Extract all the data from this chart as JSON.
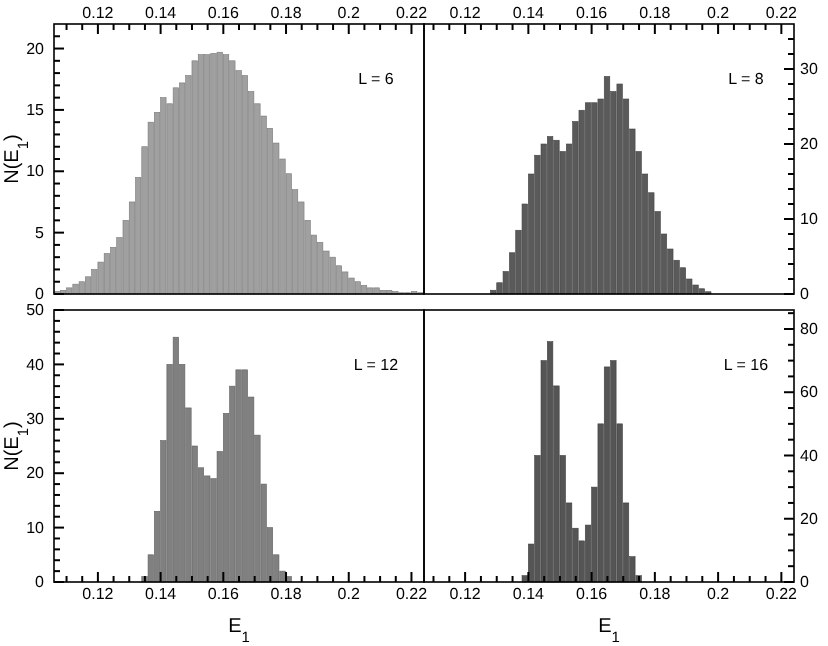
{
  "chart_data": [
    {
      "type": "histogram",
      "ylabel": "N(E$_{1}$)",
      "annotations": [
        "L = 6"
      ],
      "xlim": [
        0.106,
        0.224
      ],
      "xticks": [
        {
          "value": 0.11,
          "label": null
        },
        {
          "value": 0.115,
          "label": null
        },
        0.12,
        {
          "value": 0.125,
          "label": null
        },
        {
          "value": 0.13,
          "label": null
        },
        {
          "value": 0.135,
          "label": null
        },
        0.14,
        {
          "value": 0.145,
          "label": null
        },
        {
          "value": 0.15,
          "label": null
        },
        {
          "value": 0.155,
          "label": null
        },
        0.16,
        {
          "value": 0.165,
          "label": null
        },
        {
          "value": 0.17,
          "label": null
        },
        {
          "value": 0.175,
          "label": null
        },
        0.18,
        {
          "value": 0.185,
          "label": null
        },
        {
          "value": 0.19,
          "label": null
        },
        {
          "value": 0.195,
          "label": null
        },
        0.2,
        {
          "value": 0.205,
          "label": null
        },
        {
          "value": 0.21,
          "label": null
        },
        {
          "value": 0.215,
          "label": null
        },
        0.22
      ],
      "ylim": [
        0,
        22
      ],
      "yticks": [
        0,
        {
          "value": 1,
          "label": null
        },
        {
          "value": 2,
          "label": null
        },
        {
          "value": 3,
          "label": null
        },
        {
          "value": 4,
          "label": null
        },
        5,
        {
          "value": 6,
          "label": null
        },
        {
          "value": 7,
          "label": null
        },
        {
          "value": 8,
          "label": null
        },
        {
          "value": 9,
          "label": null
        },
        10,
        {
          "value": 11,
          "label": null
        },
        {
          "value": 12,
          "label": null
        },
        {
          "value": 13,
          "label": null
        },
        {
          "value": 14,
          "label": null
        },
        15,
        {
          "value": 16,
          "label": null
        },
        {
          "value": 17,
          "label": null
        },
        {
          "value": 18,
          "label": null
        },
        {
          "value": 19,
          "label": null
        },
        20,
        {
          "value": 21,
          "label": null
        }
      ],
      "bins": [
        0.106,
        0.108,
        0.11,
        0.112,
        0.114,
        0.116,
        0.118,
        0.12,
        0.122,
        0.124,
        0.126,
        0.128,
        0.13,
        0.132,
        0.134,
        0.136,
        0.138,
        0.14,
        0.142,
        0.144,
        0.146,
        0.148,
        0.15,
        0.152,
        0.154,
        0.156,
        0.158,
        0.16,
        0.162,
        0.164,
        0.166,
        0.168,
        0.17,
        0.172,
        0.174,
        0.176,
        0.178,
        0.18,
        0.182,
        0.184,
        0.186,
        0.188,
        0.19,
        0.192,
        0.194,
        0.196,
        0.198,
        0.2,
        0.202,
        0.204,
        0.206,
        0.208,
        0.21,
        0.212,
        0.214,
        0.216,
        0.218,
        0.22,
        0.222,
        0.224
      ],
      "series": [
        {
          "color": "#a0a0a0",
          "values": [
            0.2,
            0.3,
            0.5,
            0.8,
            1.0,
            1.4,
            2.0,
            2.6,
            3.3,
            3.8,
            4.6,
            6.0,
            7.5,
            9.5,
            12.0,
            14.0,
            14.8,
            16.0,
            15.5,
            16.8,
            17.2,
            17.8,
            19.0,
            19.5,
            19.5,
            19.6,
            19.7,
            19.5,
            19.0,
            18.2,
            17.8,
            16.5,
            15.5,
            14.5,
            13.5,
            12.3,
            11.0,
            9.8,
            8.5,
            7.5,
            6.0,
            4.8,
            4.2,
            3.5,
            3.0,
            2.3,
            1.8,
            1.3,
            1.0,
            0.7,
            0.5,
            0.5,
            0.3,
            0.3,
            0.2,
            0.1,
            0.1,
            0.2,
            0.1
          ]
        }
      ]
    },
    {
      "type": "histogram",
      "annotations": [
        "L = 8"
      ],
      "xlim": [
        0.107,
        0.224
      ],
      "xticks": [
        {
          "value": 0.11,
          "label": null
        },
        {
          "value": 0.115,
          "label": null
        },
        0.12,
        {
          "value": 0.125,
          "label": null
        },
        {
          "value": 0.13,
          "label": null
        },
        {
          "value": 0.135,
          "label": null
        },
        0.14,
        {
          "value": 0.145,
          "label": null
        },
        {
          "value": 0.15,
          "label": null
        },
        {
          "value": 0.155,
          "label": null
        },
        0.16,
        {
          "value": 0.165,
          "label": null
        },
        {
          "value": 0.17,
          "label": null
        },
        {
          "value": 0.175,
          "label": null
        },
        0.18,
        {
          "value": 0.185,
          "label": null
        },
        {
          "value": 0.19,
          "label": null
        },
        {
          "value": 0.195,
          "label": null
        },
        0.2,
        {
          "value": 0.205,
          "label": null
        },
        {
          "value": 0.21,
          "label": null
        },
        {
          "value": 0.215,
          "label": null
        },
        0.22
      ],
      "y2lim": [
        0,
        36
      ],
      "y2ticks": [
        0,
        {
          "value": 2,
          "label": null
        },
        {
          "value": 4,
          "label": null
        },
        {
          "value": 6,
          "label": null
        },
        {
          "value": 8,
          "label": null
        },
        10,
        {
          "value": 12,
          "label": null
        },
        {
          "value": 14,
          "label": null
        },
        {
          "value": 16,
          "label": null
        },
        {
          "value": 18,
          "label": null
        },
        20,
        {
          "value": 22,
          "label": null
        },
        {
          "value": 24,
          "label": null
        },
        {
          "value": 26,
          "label": null
        },
        {
          "value": 28,
          "label": null
        },
        30,
        {
          "value": 32,
          "label": null
        },
        {
          "value": 34,
          "label": null
        }
      ],
      "bins": [
        0.128,
        0.13,
        0.132,
        0.134,
        0.136,
        0.138,
        0.14,
        0.142,
        0.144,
        0.146,
        0.148,
        0.15,
        0.152,
        0.154,
        0.156,
        0.158,
        0.16,
        0.162,
        0.164,
        0.166,
        0.168,
        0.17,
        0.172,
        0.174,
        0.176,
        0.178,
        0.18,
        0.182,
        0.184,
        0.186,
        0.188,
        0.19,
        0.192,
        0.194,
        0.196,
        0.198
      ],
      "series": [
        {
          "color": "#5a5a5a",
          "axis": "y2",
          "values": [
            0.5,
            1.5,
            3,
            5.5,
            8.5,
            12,
            16,
            18.5,
            20,
            21,
            20.5,
            19,
            20,
            23,
            24.5,
            25.5,
            25.5,
            26,
            29,
            27,
            28,
            26,
            22,
            19,
            16,
            13.5,
            11,
            8,
            6,
            4.5,
            3.5,
            2,
            1.2,
            0.7,
            0.3
          ]
        }
      ]
    },
    {
      "type": "histogram",
      "xlabel": "E$_{1}$",
      "ylabel": "N(E$_{1}$)",
      "annotations": [
        "L = 12"
      ],
      "xlim": [
        0.106,
        0.224
      ],
      "xticks": [
        {
          "value": 0.11,
          "label": null
        },
        {
          "value": 0.115,
          "label": null
        },
        0.12,
        {
          "value": 0.125,
          "label": null
        },
        {
          "value": 0.13,
          "label": null
        },
        {
          "value": 0.135,
          "label": null
        },
        0.14,
        {
          "value": 0.145,
          "label": null
        },
        {
          "value": 0.15,
          "label": null
        },
        {
          "value": 0.155,
          "label": null
        },
        0.16,
        {
          "value": 0.165,
          "label": null
        },
        {
          "value": 0.17,
          "label": null
        },
        {
          "value": 0.175,
          "label": null
        },
        0.18,
        {
          "value": 0.185,
          "label": null
        },
        {
          "value": 0.19,
          "label": null
        },
        {
          "value": 0.195,
          "label": null
        },
        0.2,
        {
          "value": 0.205,
          "label": null
        },
        {
          "value": 0.21,
          "label": null
        },
        {
          "value": 0.215,
          "label": null
        },
        0.22
      ],
      "ylim": [
        0,
        50
      ],
      "yticks": [
        0,
        {
          "value": 2,
          "label": null
        },
        {
          "value": 4,
          "label": null
        },
        {
          "value": 6,
          "label": null
        },
        {
          "value": 8,
          "label": null
        },
        10,
        {
          "value": 12,
          "label": null
        },
        {
          "value": 14,
          "label": null
        },
        {
          "value": 16,
          "label": null
        },
        {
          "value": 18,
          "label": null
        },
        20,
        {
          "value": 22,
          "label": null
        },
        {
          "value": 24,
          "label": null
        },
        {
          "value": 26,
          "label": null
        },
        {
          "value": 28,
          "label": null
        },
        30,
        {
          "value": 32,
          "label": null
        },
        {
          "value": 34,
          "label": null
        },
        {
          "value": 36,
          "label": null
        },
        {
          "value": 38,
          "label": null
        },
        40,
        {
          "value": 42,
          "label": null
        },
        {
          "value": 44,
          "label": null
        },
        {
          "value": 46,
          "label": null
        },
        {
          "value": 48,
          "label": null
        },
        50
      ],
      "bins": [
        0.134,
        0.136,
        0.138,
        0.14,
        0.142,
        0.144,
        0.146,
        0.148,
        0.15,
        0.152,
        0.154,
        0.156,
        0.158,
        0.16,
        0.162,
        0.164,
        0.166,
        0.168,
        0.17,
        0.172,
        0.174,
        0.176,
        0.178,
        0.18,
        0.182
      ],
      "series": [
        {
          "color": "#808080",
          "values": [
            1,
            5,
            13,
            26,
            40,
            45,
            40,
            32,
            25,
            21,
            19.5,
            19,
            24,
            31,
            36,
            39,
            39,
            34,
            27,
            18,
            10,
            5,
            2,
            1
          ]
        }
      ]
    },
    {
      "type": "histogram",
      "xlabel": "E$_{1}$",
      "annotations": [
        "L = 16"
      ],
      "xlim": [
        0.107,
        0.224
      ],
      "xticks": [
        {
          "value": 0.11,
          "label": null
        },
        {
          "value": 0.115,
          "label": null
        },
        0.12,
        {
          "value": 0.125,
          "label": null
        },
        {
          "value": 0.13,
          "label": null
        },
        {
          "value": 0.135,
          "label": null
        },
        0.14,
        {
          "value": 0.145,
          "label": null
        },
        {
          "value": 0.15,
          "label": null
        },
        {
          "value": 0.155,
          "label": null
        },
        0.16,
        {
          "value": 0.165,
          "label": null
        },
        {
          "value": 0.17,
          "label": null
        },
        {
          "value": 0.175,
          "label": null
        },
        0.18,
        {
          "value": 0.185,
          "label": null
        },
        {
          "value": 0.19,
          "label": null
        },
        {
          "value": 0.195,
          "label": null
        },
        0.2,
        {
          "value": 0.205,
          "label": null
        },
        {
          "value": 0.21,
          "label": null
        },
        {
          "value": 0.215,
          "label": null
        },
        0.22
      ],
      "y2lim": [
        0,
        86
      ],
      "y2ticks": [
        0,
        {
          "value": 5,
          "label": null
        },
        {
          "value": 10,
          "label": null
        },
        {
          "value": 15,
          "label": null
        },
        20,
        {
          "value": 25,
          "label": null
        },
        {
          "value": 30,
          "label": null
        },
        {
          "value": 35,
          "label": null
        },
        40,
        {
          "value": 45,
          "label": null
        },
        {
          "value": 50,
          "label": null
        },
        {
          "value": 55,
          "label": null
        },
        60,
        {
          "value": 65,
          "label": null
        },
        {
          "value": 70,
          "label": null
        },
        {
          "value": 75,
          "label": null
        },
        80,
        {
          "value": 85,
          "label": null
        }
      ],
      "bins": [
        0.138,
        0.14,
        0.142,
        0.144,
        0.146,
        0.148,
        0.15,
        0.152,
        0.154,
        0.156,
        0.158,
        0.16,
        0.162,
        0.164,
        0.166,
        0.168,
        0.17,
        0.172,
        0.174,
        0.176
      ],
      "series": [
        {
          "color": "#555555",
          "axis": "y2",
          "values": [
            2,
            12,
            40,
            70,
            76,
            62,
            40,
            25,
            17,
            13,
            18,
            30,
            50,
            68,
            70,
            50,
            25,
            8,
            2
          ]
        }
      ]
    }
  ]
}
